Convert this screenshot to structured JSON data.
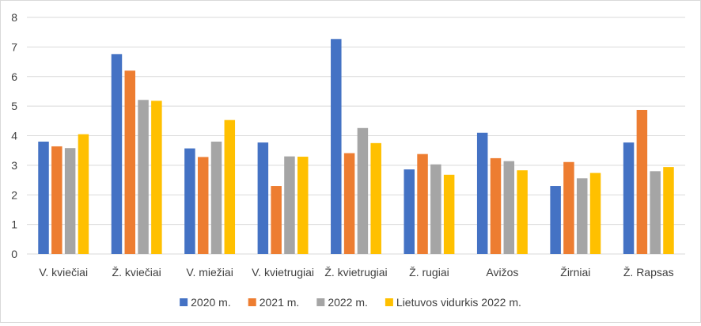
{
  "chart_data": {
    "type": "bar",
    "title": "",
    "xlabel": "",
    "ylabel": "",
    "ylim": [
      0,
      8
    ],
    "yticks": [
      0,
      1,
      2,
      3,
      4,
      5,
      6,
      7,
      8
    ],
    "grid": true,
    "legend_position": "bottom",
    "categories": [
      "V. kviečiai",
      "Ž. kviečiai",
      "V. miežiai",
      "V. kvietrugiai",
      "Ž. kvietrugiai",
      "Ž. rugiai",
      "Avižos",
      "Žirniai",
      "Ž. Rapsas"
    ],
    "series": [
      {
        "name": "2020 m.",
        "color": "#4472c4",
        "values": [
          3.8,
          6.76,
          3.57,
          3.77,
          7.27,
          2.86,
          4.1,
          2.3,
          3.77
        ]
      },
      {
        "name": "2021 m.",
        "color": "#ed7d31",
        "values": [
          3.64,
          6.2,
          3.28,
          2.3,
          3.41,
          3.38,
          3.24,
          3.11,
          4.87
        ]
      },
      {
        "name": "2022 m.",
        "color": "#a5a5a5",
        "values": [
          3.58,
          5.21,
          3.8,
          3.3,
          4.26,
          3.03,
          3.14,
          2.56,
          2.8
        ]
      },
      {
        "name": "Lietuvos vidurkis 2022 m.",
        "color": "#ffc000",
        "values": [
          4.05,
          5.18,
          4.53,
          3.29,
          3.75,
          2.68,
          2.83,
          2.74,
          2.94
        ]
      }
    ]
  }
}
